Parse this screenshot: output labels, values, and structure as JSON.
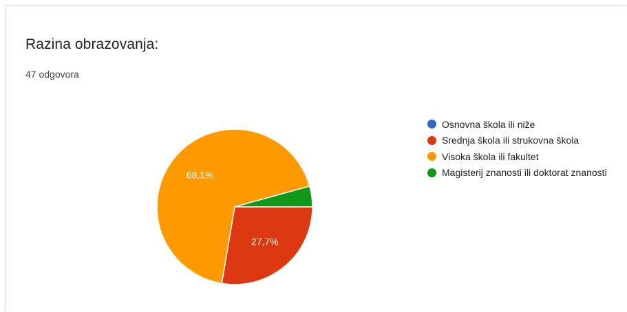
{
  "card": {
    "title": "Razina obrazovanja:",
    "subtitle": "47 odgovora"
  },
  "chart_data": {
    "type": "pie",
    "total_responses": 47,
    "slices": [
      {
        "label": "Osnovna škola ili niže",
        "value": 0,
        "percent_label": "",
        "color": "#3366cc"
      },
      {
        "label": "Srednja škola ili strukovna škola",
        "value": 27.7,
        "percent_label": "27,7%",
        "color": "#dc3912"
      },
      {
        "label": "Visoka škola ili fakultet",
        "value": 68.1,
        "percent_label": "68,1%",
        "color": "#ff9900"
      },
      {
        "label": "Magisterij znanosti ili doktorat znanosti",
        "value": 4.3,
        "percent_label": "",
        "color": "#109618"
      }
    ],
    "legend_position": "right"
  }
}
